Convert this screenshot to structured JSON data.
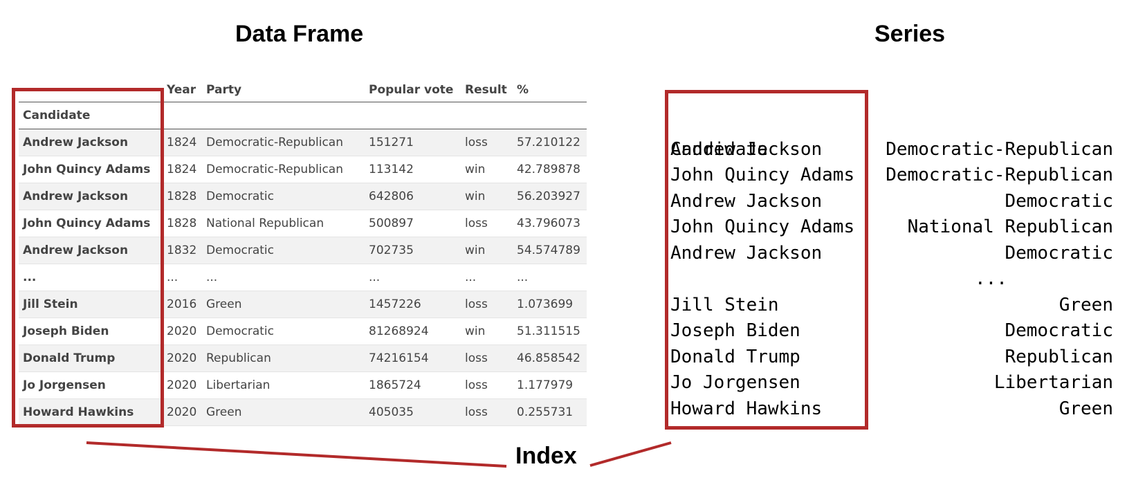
{
  "titles": {
    "data_frame": "Data Frame",
    "series": "Series",
    "index": "Index"
  },
  "colors": {
    "highlight_box": "#b22a2a",
    "stripe": "#f2f2f2"
  },
  "data_frame": {
    "columns": [
      "Year",
      "Party",
      "Popular vote",
      "Result",
      "%"
    ],
    "index_name": "Candidate",
    "rows": [
      {
        "candidate": "Andrew Jackson",
        "year": "1824",
        "party": "Democratic-Republican",
        "popular_vote": "151271",
        "result": "loss",
        "pct": "57.210122"
      },
      {
        "candidate": "John Quincy Adams",
        "year": "1824",
        "party": "Democratic-Republican",
        "popular_vote": "113142",
        "result": "win",
        "pct": "42.789878"
      },
      {
        "candidate": "Andrew Jackson",
        "year": "1828",
        "party": "Democratic",
        "popular_vote": "642806",
        "result": "win",
        "pct": "56.203927"
      },
      {
        "candidate": "John Quincy Adams",
        "year": "1828",
        "party": "National Republican",
        "popular_vote": "500897",
        "result": "loss",
        "pct": "43.796073"
      },
      {
        "candidate": "Andrew Jackson",
        "year": "1832",
        "party": "Democratic",
        "popular_vote": "702735",
        "result": "win",
        "pct": "54.574789"
      },
      {
        "candidate": "...",
        "year": "...",
        "party": "...",
        "popular_vote": "...",
        "result": "...",
        "pct": "..."
      },
      {
        "candidate": "Jill Stein",
        "year": "2016",
        "party": "Green",
        "popular_vote": "1457226",
        "result": "loss",
        "pct": "1.073699"
      },
      {
        "candidate": "Joseph Biden",
        "year": "2020",
        "party": "Democratic",
        "popular_vote": "81268924",
        "result": "win",
        "pct": "51.311515"
      },
      {
        "candidate": "Donald Trump",
        "year": "2020",
        "party": "Republican",
        "popular_vote": "74216154",
        "result": "loss",
        "pct": "46.858542"
      },
      {
        "candidate": "Jo Jorgensen",
        "year": "2020",
        "party": "Libertarian",
        "popular_vote": "1865724",
        "result": "loss",
        "pct": "1.177979"
      },
      {
        "candidate": "Howard Hawkins",
        "year": "2020",
        "party": "Green",
        "popular_vote": "405035",
        "result": "loss",
        "pct": "0.255731"
      }
    ]
  },
  "series": {
    "index_name": "Candidate",
    "rows": [
      {
        "index": "Andrew Jackson",
        "value": "Democratic-Republican"
      },
      {
        "index": "John Quincy Adams",
        "value": "Democratic-Republican"
      },
      {
        "index": "Andrew Jackson",
        "value": "Democratic"
      },
      {
        "index": "John Quincy Adams",
        "value": "National Republican"
      },
      {
        "index": "Andrew Jackson",
        "value": "Democratic"
      },
      {
        "index": "",
        "value": "",
        "ellipsis": "..."
      },
      {
        "index": "Jill Stein",
        "value": "Green"
      },
      {
        "index": "Joseph Biden",
        "value": "Democratic"
      },
      {
        "index": "Donald Trump",
        "value": "Republican"
      },
      {
        "index": "Jo Jorgensen",
        "value": "Libertarian"
      },
      {
        "index": "Howard Hawkins",
        "value": "Green"
      }
    ]
  }
}
